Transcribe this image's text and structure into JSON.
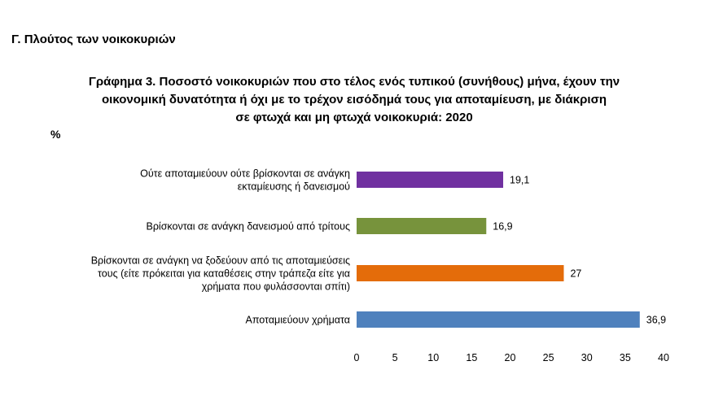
{
  "section_title": "Γ. Πλούτος των νοικοκυριών",
  "chart_data": {
    "type": "bar",
    "orientation": "horizontal",
    "title_lines": [
      "Γράφημα 3. Ποσοστό νοικοκυριών που στο τέλος ενός τυπικού (συνήθους) μήνα, έχουν την",
      "οικονομική δυνατότητα ή όχι με το τρέχον εισόδημά τους για αποταμίευση, με διάκριση",
      "σε φτωχά και μη φτωχά νοικοκυριά: 2020"
    ],
    "unit": "%",
    "categories": [
      [
        "Ούτε αποταμιεύουν ούτε βρίσκονται σε ανάγκη",
        "εκταμίευσης ή δανεισμού"
      ],
      [
        "Βρίσκονται σε ανάγκη δανεισμού από τρίτους"
      ],
      [
        "Βρίσκονται σε ανάγκη να ξοδεύουν από τις αποταμιεύσεις",
        "τους (είτε πρόκειται για καταθέσεις στην τράπεζα είτε για",
        "χρήματα που φυλάσσονται σπίτι)"
      ],
      [
        "Αποταμιεύουν χρήματα"
      ]
    ],
    "values": [
      19.1,
      16.9,
      27,
      36.9
    ],
    "value_labels": [
      "19,1",
      "16,9",
      "27",
      "36,9"
    ],
    "colors": [
      "#7030a0",
      "#77933c",
      "#e46c0a",
      "#4f81bd"
    ],
    "xlim": [
      0,
      40
    ],
    "xticks": [
      0,
      5,
      10,
      15,
      20,
      25,
      30,
      35,
      40
    ],
    "grid": false
  }
}
